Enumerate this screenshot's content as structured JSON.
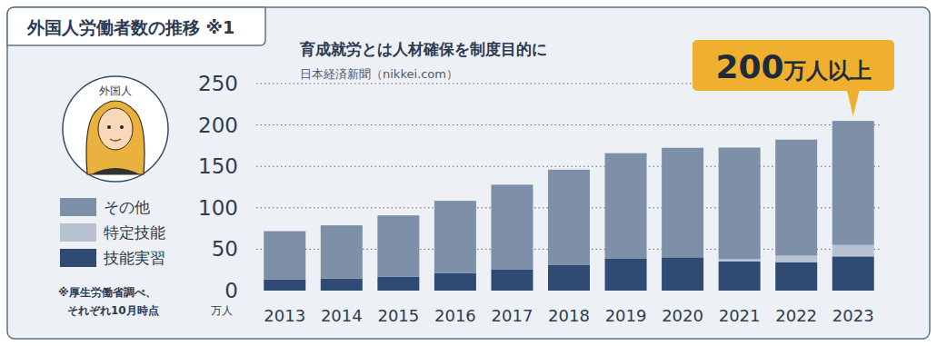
{
  "chart_data": {
    "type": "bar",
    "stacked": true,
    "title": "外国人労働者数の推移 ※1",
    "subtitle": "育成就労とは人材確保を制度目的に",
    "source": "日本経済新聞（nikkei.com）",
    "annotation": "200万人以上",
    "icon_label": "外国人",
    "y_label": "万人",
    "note": [
      "※厚生労働省調べ、",
      "それぞれ10月時点"
    ],
    "categories": [
      "2013",
      "2014",
      "2015",
      "2016",
      "2017",
      "2018",
      "2019",
      "2020",
      "2021",
      "2022",
      "2023"
    ],
    "series": [
      {
        "name": "技能実習",
        "color": "#2f4b73",
        "values": [
          13.6,
          14.5,
          16.8,
          21.1,
          25.8,
          30.8,
          38.4,
          40.2,
          35.1,
          34.3,
          41.3
        ]
      },
      {
        "name": "特定技能",
        "color": "#b8c2d0",
        "values": [
          0,
          0,
          0,
          0,
          0,
          0,
          0,
          0,
          2.9,
          7.9,
          13.8
        ]
      },
      {
        "name": "その他",
        "color": "#7e8fa8",
        "values": [
          58.2,
          64.3,
          74.0,
          87.3,
          102.1,
          115.2,
          127.5,
          132.2,
          134.7,
          140.1,
          149.8
        ]
      }
    ],
    "ylim": [
      0,
      250
    ],
    "yticks": [
      0,
      50,
      100,
      150,
      200,
      250
    ],
    "grid": true,
    "legend": "left"
  }
}
